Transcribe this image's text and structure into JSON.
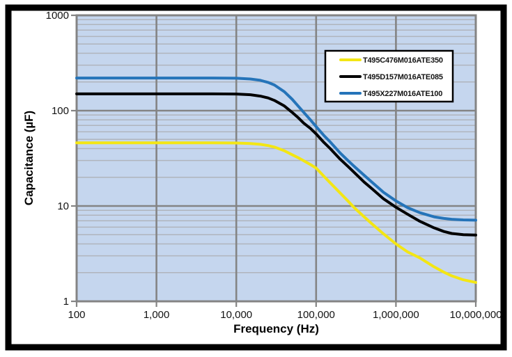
{
  "frame": {
    "border_color": "#000000",
    "background": "#ffffff"
  },
  "chart_data": {
    "type": "line",
    "title": "",
    "xlabel": "Frequency (Hz)",
    "ylabel": "Capacitance (µF)",
    "x_scale": "log",
    "y_scale": "log",
    "xlim": [
      100,
      10000000
    ],
    "ylim": [
      1,
      1000
    ],
    "x_tick_values": [
      100,
      1000,
      10000,
      100000,
      1000000,
      10000000
    ],
    "x_tick_labels": [
      "100",
      "1,000",
      "10,000",
      "100,000",
      "1,000,000",
      "10,000,000"
    ],
    "y_tick_values": [
      1,
      10,
      100,
      1000
    ],
    "y_tick_labels": [
      "1",
      "10",
      "100",
      "1000"
    ],
    "grid": {
      "plot_bg": "#c5d6ee",
      "minor_color": "#b0b4bc",
      "major_color": "#848484",
      "minor_horizontal_only": true
    },
    "legend": {
      "position": "top-right",
      "bg": "#ffffff",
      "border": "#000000"
    },
    "series": [
      {
        "name": "T495C476M016ATE350",
        "color": "#f3e614",
        "flat_value_uF": 46,
        "points": [
          [
            100,
            46
          ],
          [
            500,
            46
          ],
          [
            1000,
            46
          ],
          [
            2000,
            46
          ],
          [
            5000,
            46
          ],
          [
            10000,
            45.8
          ],
          [
            15000,
            45.2
          ],
          [
            20000,
            44.3
          ],
          [
            25000,
            43
          ],
          [
            30000,
            41.5
          ],
          [
            40000,
            38
          ],
          [
            50000,
            34.5
          ],
          [
            60000,
            32
          ],
          [
            70000,
            29.8
          ],
          [
            85000,
            27.2
          ],
          [
            100000,
            25
          ],
          [
            125000,
            20.5
          ],
          [
            150000,
            17.5
          ],
          [
            200000,
            13.7
          ],
          [
            250000,
            11.3
          ],
          [
            300000,
            9.6
          ],
          [
            400000,
            7.7
          ],
          [
            500000,
            6.5
          ],
          [
            700000,
            5.1
          ],
          [
            1000000,
            4.0
          ],
          [
            1400000,
            3.3
          ],
          [
            2000000,
            2.85
          ],
          [
            3000000,
            2.3
          ],
          [
            4000000,
            2.02
          ],
          [
            5000000,
            1.85
          ],
          [
            7000000,
            1.68
          ],
          [
            10000000,
            1.58
          ]
        ]
      },
      {
        "name": "T495D157M016ATE085",
        "color": "#000000",
        "flat_value_uF": 150,
        "points": [
          [
            100,
            150
          ],
          [
            500,
            150
          ],
          [
            1000,
            150
          ],
          [
            2000,
            150
          ],
          [
            5000,
            150
          ],
          [
            10000,
            149.5
          ],
          [
            15000,
            147
          ],
          [
            20000,
            142
          ],
          [
            25000,
            136
          ],
          [
            30000,
            128
          ],
          [
            40000,
            112
          ],
          [
            50000,
            96
          ],
          [
            60000,
            84
          ],
          [
            70000,
            74
          ],
          [
            85000,
            65
          ],
          [
            100000,
            57
          ],
          [
            125000,
            46.5
          ],
          [
            150000,
            40
          ],
          [
            200000,
            31
          ],
          [
            250000,
            26
          ],
          [
            300000,
            22.5
          ],
          [
            400000,
            17.8
          ],
          [
            500000,
            15.2
          ],
          [
            700000,
            11.9
          ],
          [
            1000000,
            9.7
          ],
          [
            1400000,
            8.2
          ],
          [
            2000000,
            6.9
          ],
          [
            3000000,
            5.9
          ],
          [
            4000000,
            5.4
          ],
          [
            5000000,
            5.15
          ],
          [
            7000000,
            5.0
          ],
          [
            10000000,
            4.95
          ]
        ]
      },
      {
        "name": "T495X227M016ATE100",
        "color": "#2574b9",
        "flat_value_uF": 220,
        "points": [
          [
            100,
            220
          ],
          [
            500,
            220
          ],
          [
            1000,
            220
          ],
          [
            2000,
            220
          ],
          [
            5000,
            220
          ],
          [
            10000,
            219
          ],
          [
            15000,
            215
          ],
          [
            20000,
            208
          ],
          [
            25000,
            198
          ],
          [
            30000,
            186
          ],
          [
            40000,
            158
          ],
          [
            50000,
            132
          ],
          [
            60000,
            111
          ],
          [
            70000,
            96
          ],
          [
            85000,
            80
          ],
          [
            100000,
            68
          ],
          [
            125000,
            55
          ],
          [
            150000,
            47
          ],
          [
            200000,
            36
          ],
          [
            250000,
            30
          ],
          [
            300000,
            26
          ],
          [
            400000,
            21
          ],
          [
            500000,
            17.8
          ],
          [
            700000,
            13.9
          ],
          [
            1000000,
            11.3
          ],
          [
            1400000,
            9.6
          ],
          [
            2000000,
            8.5
          ],
          [
            3000000,
            7.7
          ],
          [
            4000000,
            7.4
          ],
          [
            5000000,
            7.25
          ],
          [
            7000000,
            7.15
          ],
          [
            10000000,
            7.1
          ]
        ]
      }
    ]
  }
}
